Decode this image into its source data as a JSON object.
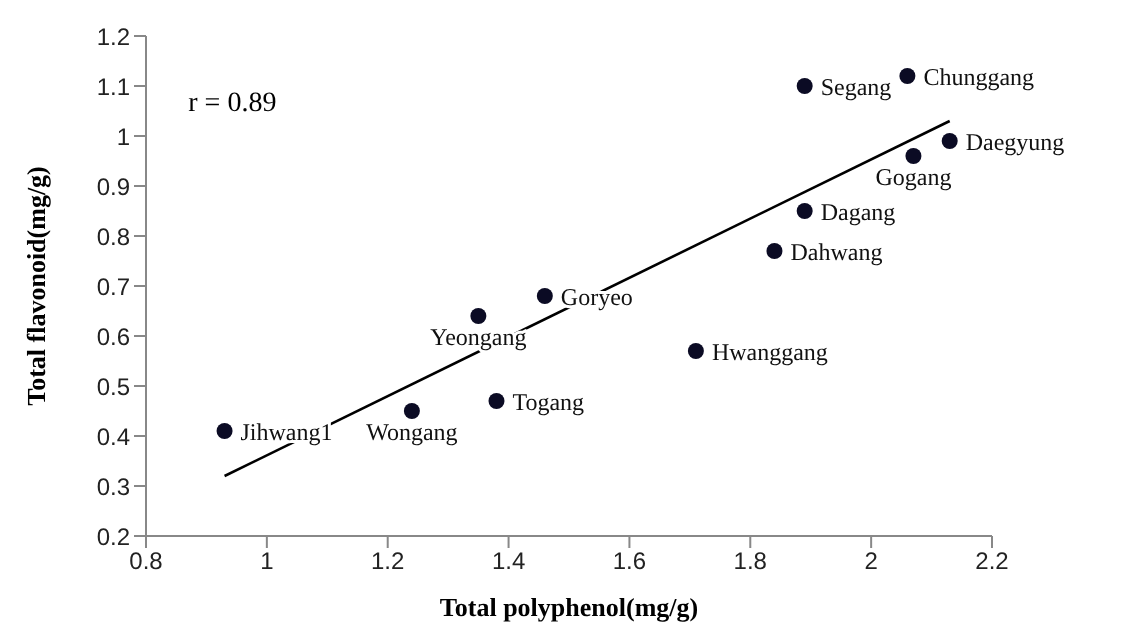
{
  "chart_data": {
    "type": "scatter",
    "xlabel": "Total polyphenol(mg/g)",
    "ylabel": "Total flavonoid(mg/g)",
    "xlim": [
      0.8,
      2.2
    ],
    "xticks": [
      0.8,
      1,
      1.2,
      1.4,
      1.6,
      1.8,
      2,
      2.2
    ],
    "ylim": [
      0.2,
      1.2
    ],
    "yticks": [
      0.2,
      0.3,
      0.4,
      0.5,
      0.6,
      0.7,
      0.8,
      0.9,
      1,
      1.1,
      1.2
    ],
    "grid": false,
    "legend": false,
    "series": [
      {
        "marker": "circle",
        "color": "#0b0b24",
        "x": [
          0.93,
          1.24,
          1.38,
          1.35,
          1.46,
          1.71,
          1.84,
          1.89,
          1.89,
          2.06,
          2.07,
          2.13
        ],
        "values": [
          0.41,
          0.45,
          0.47,
          0.64,
          0.68,
          0.57,
          0.77,
          0.85,
          1.1,
          1.12,
          0.96,
          0.99
        ]
      },
      {
        "type": "line",
        "marker": "none",
        "color": "#000000",
        "x": [
          0.93,
          2.13
        ],
        "values": [
          0.32,
          1.03
        ]
      }
    ],
    "annotations": [
      "r = 0.89",
      {
        "text": "Jihwang1",
        "x": 0.93,
        "y": 0.41
      },
      {
        "text": "Wongang",
        "x": 1.24,
        "y": 0.45
      },
      {
        "text": "Togang",
        "x": 1.38,
        "y": 0.47
      },
      {
        "text": "Yeongang",
        "x": 1.35,
        "y": 0.64
      },
      {
        "text": "Goryeo",
        "x": 1.46,
        "y": 0.68
      },
      {
        "text": "Hwanggang",
        "x": 1.71,
        "y": 0.57
      },
      {
        "text": "Dahwang",
        "x": 1.84,
        "y": 0.77
      },
      {
        "text": "Dagang",
        "x": 1.89,
        "y": 0.85
      },
      {
        "text": "Segang",
        "x": 1.89,
        "y": 1.1
      },
      {
        "text": "Chunggang",
        "x": 2.06,
        "y": 1.12
      },
      {
        "text": "Gogang",
        "x": 2.07,
        "y": 0.96
      },
      {
        "text": "Daegyung",
        "x": 2.13,
        "y": 0.99
      }
    ]
  }
}
